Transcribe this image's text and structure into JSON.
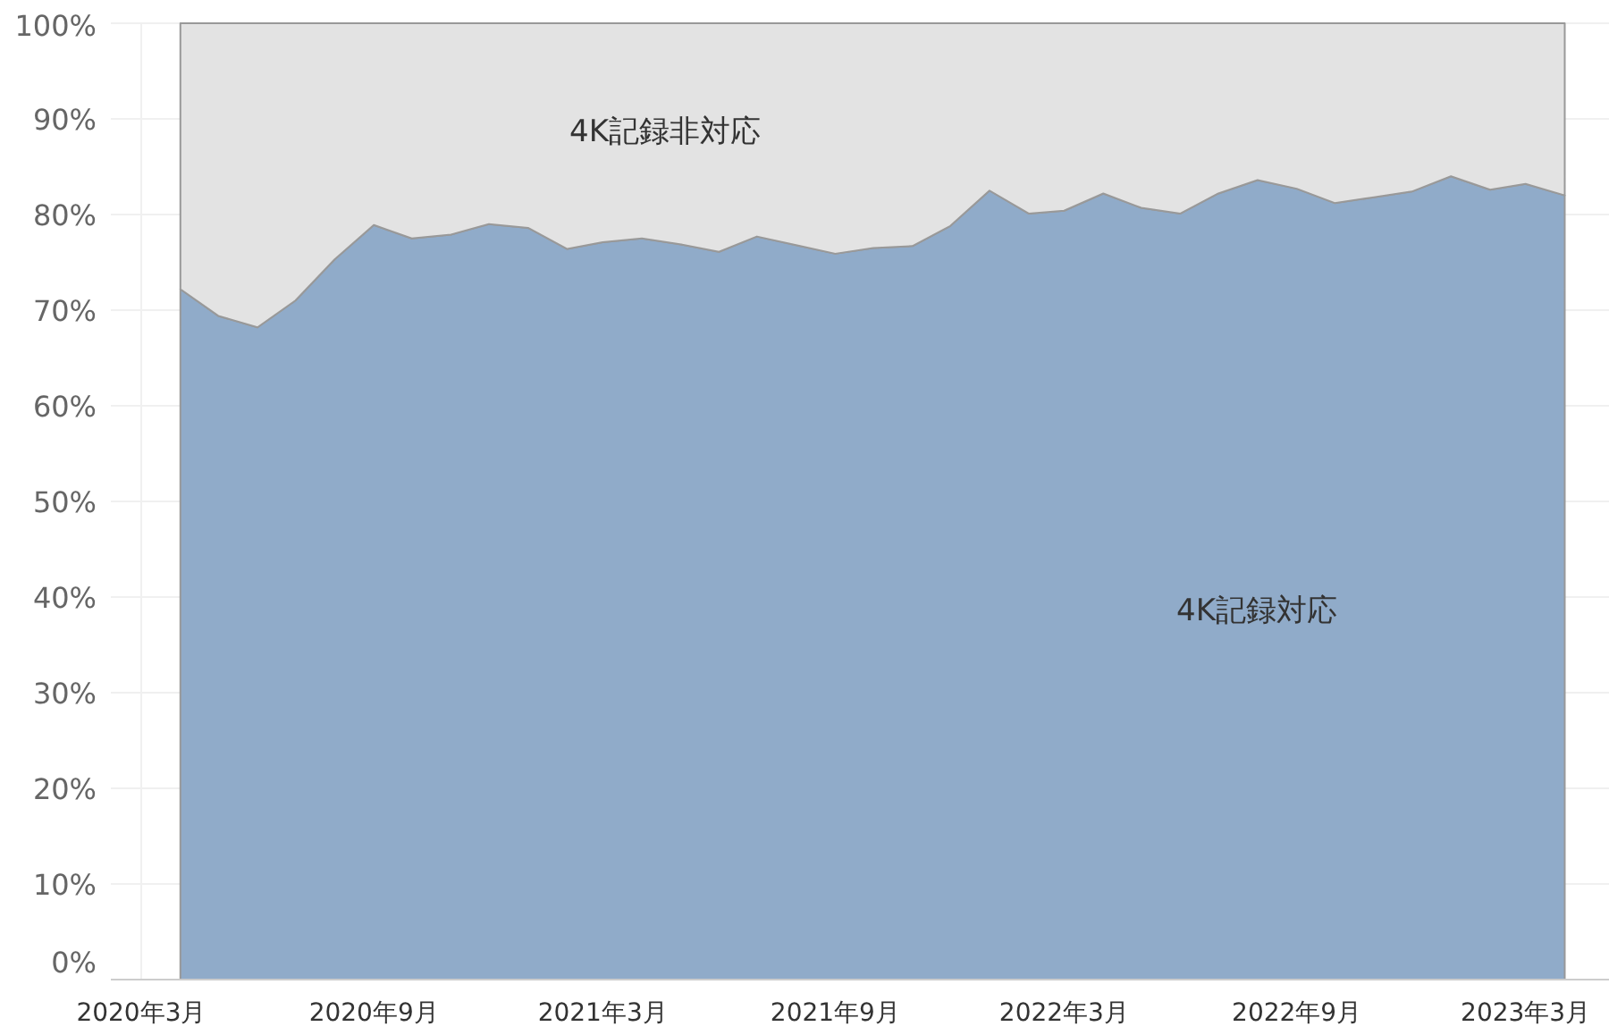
{
  "chart_data": {
    "type": "area",
    "stacked": true,
    "grid": true,
    "x": [
      "2020-04",
      "2020-05",
      "2020-06",
      "2020-07",
      "2020-08",
      "2020-09",
      "2020-10",
      "2020-11",
      "2020-12",
      "2021-01",
      "2021-02",
      "2021-03",
      "2021-04",
      "2021-05",
      "2021-06",
      "2021-07",
      "2021-08",
      "2021-09",
      "2021-10",
      "2021-11",
      "2021-12",
      "2022-01",
      "2022-02",
      "2022-03",
      "2022-04",
      "2022-05",
      "2022-06",
      "2022-07",
      "2022-08",
      "2022-09",
      "2022-10",
      "2022-11",
      "2022-12",
      "2023-01",
      "2023-02",
      "2023-03",
      "2023-04"
    ],
    "series": [
      {
        "name": "4K記録対応",
        "color": "#90abc9",
        "values": [
          72.2,
          69.4,
          68.2,
          71.0,
          75.3,
          78.9,
          77.5,
          77.9,
          79.0,
          78.6,
          76.4,
          77.1,
          77.5,
          76.9,
          76.1,
          77.7,
          76.8,
          75.9,
          76.5,
          76.7,
          78.8,
          82.5,
          80.1,
          80.4,
          82.2,
          80.7,
          80.1,
          82.2,
          83.6,
          82.7,
          81.2,
          81.8,
          82.4,
          84.0,
          82.6,
          83.2,
          82.0
        ]
      },
      {
        "name": "4K記録非対応",
        "color": "#e3e3e3",
        "values": [
          27.8,
          30.6,
          31.8,
          29.0,
          24.7,
          21.1,
          22.5,
          22.1,
          21.0,
          21.4,
          23.6,
          22.9,
          22.5,
          23.1,
          23.9,
          22.3,
          23.2,
          24.1,
          23.5,
          23.3,
          21.2,
          17.5,
          19.9,
          19.6,
          17.8,
          19.3,
          19.9,
          17.8,
          16.4,
          17.3,
          18.8,
          18.2,
          17.6,
          16.0,
          17.4,
          16.8,
          18.0
        ]
      }
    ],
    "xlim": [
      "2020-02-06",
      "2023-05-06"
    ],
    "xticks": [
      {
        "value": "2020-03",
        "label": "2020年3月"
      },
      {
        "value": "2020-09",
        "label": "2020年9月"
      },
      {
        "value": "2021-03",
        "label": "2021年3月"
      },
      {
        "value": "2021-09",
        "label": "2021年9月"
      },
      {
        "value": "2022-03",
        "label": "2022年3月"
      },
      {
        "value": "2022-09",
        "label": "2022年9月"
      },
      {
        "value": "2023-03",
        "label": "2023年3月"
      }
    ],
    "ylim": [
      0,
      100
    ],
    "yticks": [
      {
        "value": 0,
        "label": "0%"
      },
      {
        "value": 10,
        "label": "10%"
      },
      {
        "value": 20,
        "label": "20%"
      },
      {
        "value": 30,
        "label": "30%"
      },
      {
        "value": 40,
        "label": "40%"
      },
      {
        "value": 50,
        "label": "50%"
      },
      {
        "value": 60,
        "label": "60%"
      },
      {
        "value": 70,
        "label": "70%"
      },
      {
        "value": 80,
        "label": "80%"
      },
      {
        "value": 90,
        "label": "90%"
      },
      {
        "value": 100,
        "label": "100%"
      }
    ]
  }
}
